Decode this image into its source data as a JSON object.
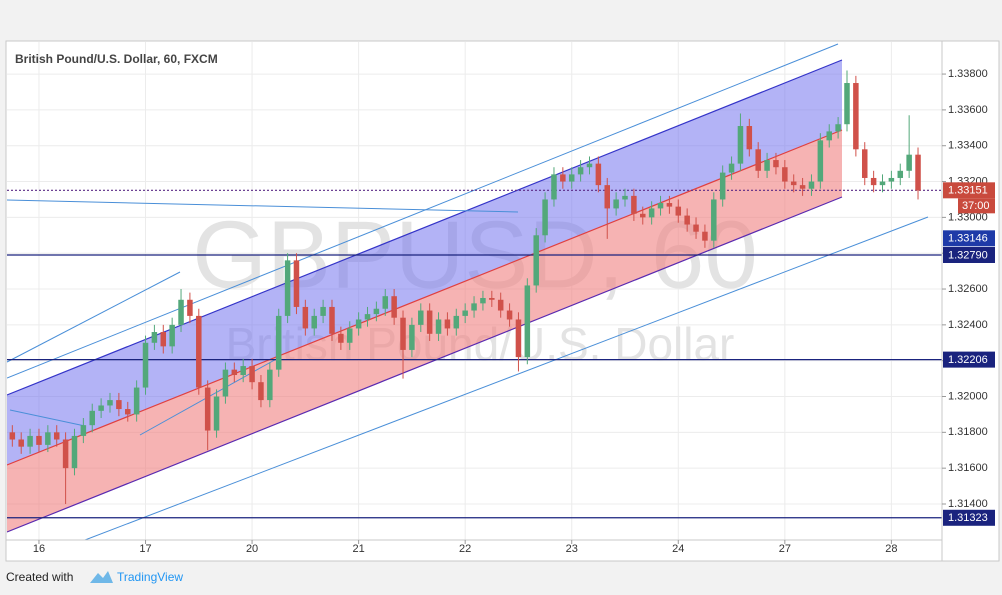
{
  "chart_data": {
    "type": "candlestick",
    "title": "British Pound/U.S. Dollar, 60, FXCM",
    "watermark": "GBPUSD, 60",
    "watermark_subtitle": "British Pound/U.S. Dollar",
    "footer_prefix": "Created with",
    "footer_brand": "TradingView",
    "countdown": "37:00",
    "up_color": "#53a87a",
    "down_color": "#d0514a",
    "grid": true,
    "xlim": [
      -7.2,
      203.4
    ],
    "xticks": [
      {
        "value": 0,
        "label": "16"
      },
      {
        "value": 24,
        "label": "17"
      },
      {
        "value": 48,
        "label": "20"
      },
      {
        "value": 72,
        "label": "21"
      },
      {
        "value": 96,
        "label": "22"
      },
      {
        "value": 120,
        "label": "23"
      },
      {
        "value": 144,
        "label": "24"
      },
      {
        "value": 168,
        "label": "27"
      },
      {
        "value": 192,
        "label": "28"
      }
    ],
    "ylim": [
      1.31199,
      1.33979
    ],
    "yticks": [
      {
        "value": 1.314,
        "label": "1.31400"
      },
      {
        "value": 1.316,
        "label": "1.31600"
      },
      {
        "value": 1.318,
        "label": "1.31800"
      },
      {
        "value": 1.32,
        "label": "1.32000"
      },
      {
        "value": 1.322,
        "label": "1.32200"
      },
      {
        "value": 1.324,
        "label": "1.32400"
      },
      {
        "value": 1.326,
        "label": "1.32600"
      },
      {
        "value": 1.328,
        "label": "1.32800"
      },
      {
        "value": 1.33,
        "label": "1.33000"
      },
      {
        "value": 1.332,
        "label": "1.33200"
      },
      {
        "value": 1.334,
        "label": "1.33400"
      },
      {
        "value": 1.336,
        "label": "1.33600"
      },
      {
        "value": 1.338,
        "label": "1.33800"
      }
    ],
    "price_levels": [
      {
        "value": 1.33151,
        "label": "1.33151",
        "color": "#c94a3d",
        "line": "dashed",
        "line_color": "#5b2a86"
      },
      {
        "value": 1.33146,
        "label": "1.33146",
        "color": "#1e3aa8",
        "line": "none",
        "line_color": "#1e3aa8"
      },
      {
        "value": 1.3279,
        "label": "1.32790",
        "color": "#1a237e",
        "line": "solid",
        "line_color": "#1a237e"
      },
      {
        "value": 1.32206,
        "label": "1.32206",
        "color": "#1a237e",
        "line": "solid",
        "line_color": "#1a237e"
      },
      {
        "value": 1.31323,
        "label": "1.31323",
        "color": "#1a237e",
        "line": "solid",
        "line_color": "#1a237e"
      }
    ],
    "x": [
      -6,
      -4,
      -2,
      0,
      2,
      4,
      6,
      8,
      10,
      12,
      14,
      16,
      18,
      20,
      22,
      24,
      26,
      28,
      30,
      32,
      34,
      36,
      38,
      40,
      42,
      44,
      46,
      48,
      50,
      52,
      54,
      56,
      58,
      60,
      62,
      64,
      66,
      68,
      70,
      72,
      74,
      76,
      78,
      80,
      82,
      84,
      86,
      88,
      90,
      92,
      94,
      96,
      98,
      100,
      102,
      104,
      106,
      108,
      110,
      112,
      114,
      116,
      118,
      120,
      122,
      124,
      126,
      128,
      130,
      132,
      134,
      136,
      138,
      140,
      142,
      144,
      146,
      148,
      150,
      152,
      154,
      156,
      158,
      160,
      162,
      164,
      166,
      168,
      170,
      172,
      174,
      176,
      178,
      180,
      182,
      184,
      186,
      188,
      190,
      192,
      194,
      196,
      198
    ],
    "open": [
      1.318,
      1.3176,
      1.3172,
      1.3178,
      1.3173,
      1.318,
      1.3176,
      1.316,
      1.3178,
      1.3184,
      1.3192,
      1.3195,
      1.3198,
      1.3193,
      1.319,
      1.3205,
      1.323,
      1.3236,
      1.3228,
      1.324,
      1.3254,
      1.3245,
      1.3205,
      1.3181,
      1.32,
      1.3215,
      1.3212,
      1.3217,
      1.3208,
      1.3198,
      1.3215,
      1.3245,
      1.3276,
      1.325,
      1.3238,
      1.3245,
      1.325,
      1.3235,
      1.323,
      1.3238,
      1.3243,
      1.3246,
      1.3249,
      1.3256,
      1.3244,
      1.3226,
      1.324,
      1.3248,
      1.3235,
      1.3243,
      1.3238,
      1.3245,
      1.3248,
      1.3252,
      1.3255,
      1.3254,
      1.3248,
      1.3243,
      1.3222,
      1.3262,
      1.329,
      1.331,
      1.3324,
      1.332,
      1.3324,
      1.3328,
      1.333,
      1.3318,
      1.3305,
      1.331,
      1.3312,
      1.3302,
      1.33,
      1.3305,
      1.3308,
      1.3306,
      1.3301,
      1.3296,
      1.3292,
      1.3287,
      1.331,
      1.3325,
      1.333,
      1.3351,
      1.3338,
      1.3326,
      1.3332,
      1.3328,
      1.332,
      1.3318,
      1.3316,
      1.332,
      1.3343,
      1.3348,
      1.3352,
      1.3375,
      1.3338,
      1.3322,
      1.3318,
      1.332,
      1.3322,
      1.3326,
      1.3335
    ],
    "high": [
      1.3184,
      1.318,
      1.3182,
      1.3182,
      1.3184,
      1.3184,
      1.318,
      1.3182,
      1.3188,
      1.3196,
      1.3199,
      1.3202,
      1.3202,
      1.3197,
      1.3209,
      1.3234,
      1.324,
      1.324,
      1.3244,
      1.326,
      1.3258,
      1.3249,
      1.3209,
      1.3204,
      1.3219,
      1.3219,
      1.3221,
      1.3221,
      1.3212,
      1.3219,
      1.3249,
      1.328,
      1.328,
      1.3254,
      1.3249,
      1.3254,
      1.3254,
      1.3239,
      1.3242,
      1.3247,
      1.325,
      1.3253,
      1.326,
      1.326,
      1.3248,
      1.3244,
      1.3252,
      1.3252,
      1.3247,
      1.3247,
      1.3249,
      1.3252,
      1.3256,
      1.3259,
      1.3259,
      1.3258,
      1.3252,
      1.3247,
      1.3266,
      1.3294,
      1.3314,
      1.3328,
      1.3328,
      1.3328,
      1.3332,
      1.3334,
      1.3334,
      1.3322,
      1.3314,
      1.3316,
      1.3316,
      1.3306,
      1.3309,
      1.3312,
      1.3312,
      1.331,
      1.3305,
      1.33,
      1.3296,
      1.3314,
      1.3329,
      1.3334,
      1.3358,
      1.3355,
      1.3342,
      1.3336,
      1.3336,
      1.3332,
      1.3324,
      1.3322,
      1.3324,
      1.3347,
      1.3352,
      1.3356,
      1.3382,
      1.3379,
      1.3342,
      1.3326,
      1.3324,
      1.3326,
      1.333,
      1.3357,
      1.3339
    ],
    "low": [
      1.3172,
      1.3168,
      1.3168,
      1.3169,
      1.3169,
      1.3172,
      1.314,
      1.3156,
      1.3174,
      1.318,
      1.3188,
      1.3191,
      1.3189,
      1.3186,
      1.3186,
      1.3201,
      1.3226,
      1.3224,
      1.3224,
      1.3236,
      1.3241,
      1.3201,
      1.317,
      1.3177,
      1.3196,
      1.3208,
      1.3208,
      1.3204,
      1.3194,
      1.3194,
      1.3211,
      1.3241,
      1.3246,
      1.3234,
      1.3234,
      1.3241,
      1.3231,
      1.3226,
      1.3226,
      1.3234,
      1.3239,
      1.3242,
      1.3245,
      1.324,
      1.321,
      1.3222,
      1.3236,
      1.3231,
      1.3231,
      1.3234,
      1.3234,
      1.3241,
      1.3244,
      1.3248,
      1.325,
      1.3244,
      1.3239,
      1.3214,
      1.3218,
      1.3258,
      1.3286,
      1.3306,
      1.3316,
      1.3316,
      1.332,
      1.3324,
      1.3314,
      1.3288,
      1.3301,
      1.3306,
      1.3298,
      1.3296,
      1.3296,
      1.3301,
      1.3302,
      1.3297,
      1.3292,
      1.3288,
      1.3283,
      1.3283,
      1.3306,
      1.3321,
      1.3326,
      1.3334,
      1.3322,
      1.3322,
      1.3324,
      1.3316,
      1.3314,
      1.3312,
      1.3312,
      1.3316,
      1.3339,
      1.3344,
      1.3348,
      1.3334,
      1.3318,
      1.3314,
      1.3314,
      1.3316,
      1.3318,
      1.3322,
      1.331
    ],
    "close": [
      1.3176,
      1.3172,
      1.3178,
      1.3173,
      1.318,
      1.3176,
      1.316,
      1.3178,
      1.3184,
      1.3192,
      1.3195,
      1.3198,
      1.3193,
      1.319,
      1.3205,
      1.323,
      1.3236,
      1.3228,
      1.324,
      1.3254,
      1.3245,
      1.3205,
      1.3181,
      1.32,
      1.3215,
      1.3212,
      1.3217,
      1.3208,
      1.3198,
      1.3215,
      1.3245,
      1.3276,
      1.325,
      1.3238,
      1.3245,
      1.325,
      1.3235,
      1.323,
      1.3238,
      1.3243,
      1.3246,
      1.3249,
      1.3256,
      1.3244,
      1.3226,
      1.324,
      1.3248,
      1.3235,
      1.3243,
      1.3238,
      1.3245,
      1.3248,
      1.3252,
      1.3255,
      1.3254,
      1.3248,
      1.3243,
      1.3222,
      1.3262,
      1.329,
      1.331,
      1.3324,
      1.332,
      1.3324,
      1.3328,
      1.333,
      1.3318,
      1.3305,
      1.331,
      1.3312,
      1.3302,
      1.33,
      1.3305,
      1.3308,
      1.3306,
      1.3301,
      1.3296,
      1.3292,
      1.3287,
      1.331,
      1.3325,
      1.333,
      1.3351,
      1.3338,
      1.3326,
      1.3332,
      1.3328,
      1.332,
      1.3318,
      1.3316,
      1.332,
      1.3343,
      1.3348,
      1.3352,
      1.3375,
      1.3338,
      1.3322,
      1.3318,
      1.332,
      1.3322,
      1.3326,
      1.3335,
      1.3315
    ]
  }
}
